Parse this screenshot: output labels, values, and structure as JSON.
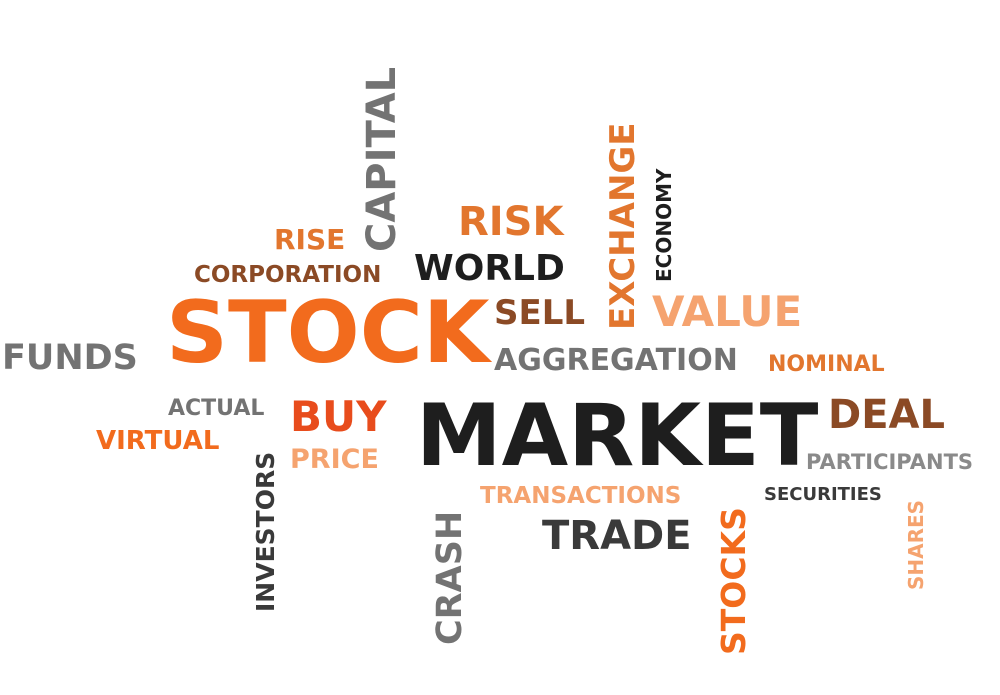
{
  "colors": {
    "black": "#1e1e1e",
    "gray": "#737373",
    "dark_gray": "#3a3a3a",
    "orange": "#f26b1d",
    "brown": "#8b4a25",
    "light_orange": "#f5a36f",
    "mid_orange": "#e2762e"
  },
  "words": {
    "market": "MARKET",
    "stock": "STOCK",
    "capital": "CAPITAL",
    "risk": "RISK",
    "exchange": "EXCHANGE",
    "economy": "ECONOMY",
    "rise": "RISE",
    "corporation": "CORPORATION",
    "world": "WORLD",
    "sell": "SELL",
    "value": "VALUE",
    "funds": "FUNDS",
    "aggregation": "AGGREGATION",
    "nominal": "NOMINAL",
    "actual": "ACTUAL",
    "buy": "BUY",
    "deal": "DEAL",
    "virtual": "VIRTUAL",
    "price": "PRICE",
    "participants": "PARTICIPANTS",
    "investors": "INVESTORS",
    "crash": "CRASH",
    "transactions": "TRANSACTIONS",
    "securities": "SECURITIES",
    "trade": "TRADE",
    "stocks": "STOCKS",
    "shares": "SHARES"
  }
}
